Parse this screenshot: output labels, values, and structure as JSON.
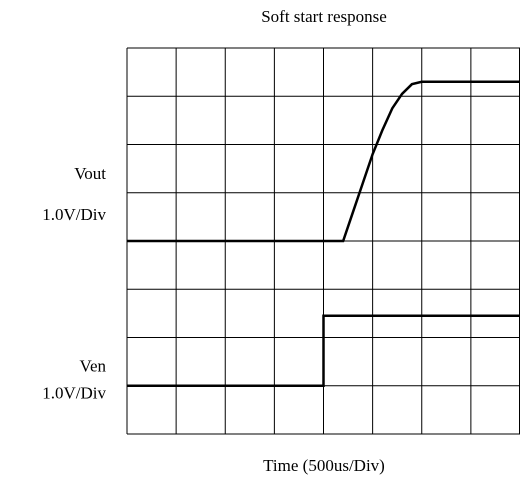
{
  "chart_data": {
    "type": "line",
    "title": "Soft start response",
    "xlabel": "Time (500us/Div)",
    "xlim": [
      0,
      4000
    ],
    "xticks": [
      0,
      500,
      1000,
      1500,
      2000,
      2500,
      3000,
      3500,
      4000
    ],
    "ylim": [
      0,
      8
    ],
    "yticks": [
      0,
      1,
      2,
      3,
      4,
      5,
      6,
      7,
      8
    ],
    "grid": true,
    "series": [
      {
        "name": "Vout",
        "scale": "1.0V/Div",
        "color": "#000000",
        "x": [
          0,
          2200,
          2300,
          2400,
          2500,
          2600,
          2700,
          2800,
          2900,
          3000,
          4000
        ],
        "values": [
          4,
          4,
          4.6,
          5.2,
          5.8,
          6.3,
          6.75,
          7.05,
          7.25,
          7.3,
          7.3
        ]
      },
      {
        "name": "Ven",
        "scale": "1.0V/Div",
        "color": "#000000",
        "x": [
          0,
          2000,
          2000,
          4000
        ],
        "values": [
          1,
          1,
          2.45,
          2.45
        ]
      }
    ]
  }
}
